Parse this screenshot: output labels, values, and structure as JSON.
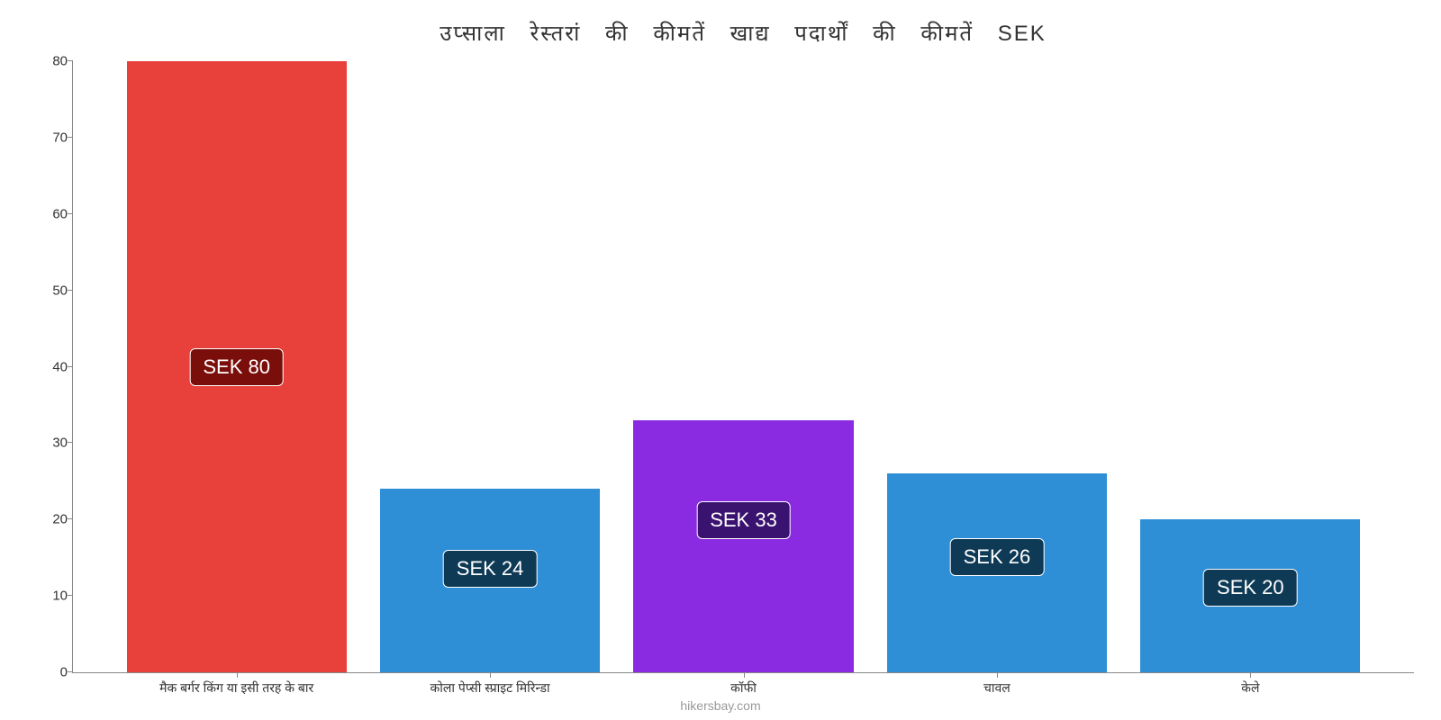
{
  "chart": {
    "type": "bar",
    "title": "उप्साला रेस्तरां की कीमतें खाद्य पदार्थों की कीमतें SEK",
    "title_fontsize": 24,
    "title_color": "#333333",
    "background_color": "#ffffff",
    "axis_color": "#888888",
    "tick_font_size": 15,
    "x_label_font_size": 14,
    "value_label_font_size": 22,
    "value_label_bg": "#0e3a56",
    "value_label_text_color": "#ffffff",
    "value_label_border": "#ffffff",
    "value_label_radius": 6,
    "ylim": [
      0,
      80
    ],
    "ytick_step": 10,
    "yticks": [
      0,
      10,
      20,
      30,
      40,
      50,
      60,
      70,
      80
    ],
    "attribution": "hikersbay.com",
    "attribution_color": "#999999",
    "bars": [
      {
        "category": "मैक बर्गर किंग या इसी तरह के बार",
        "value": 80,
        "value_label": "SEK 80",
        "color": "#e8403a",
        "label_bg": "#7a0e0a",
        "center_pct": 12.2,
        "width_pct": 16.4,
        "label_top_pct": 47
      },
      {
        "category": "कोला पेप्सी स्प्राइट मिरिन्डा",
        "value": 24,
        "value_label": "SEK 24",
        "color": "#2e8ed6",
        "label_bg": "#0e3a56",
        "center_pct": 31.1,
        "width_pct": 16.4,
        "label_top_pct": 80
      },
      {
        "category": "कॉफी",
        "value": 33,
        "value_label": "SEK 33",
        "color": "#8a2be2",
        "label_bg": "#3a1270",
        "center_pct": 50.0,
        "width_pct": 16.4,
        "label_top_pct": 72
      },
      {
        "category": "चावल",
        "value": 26,
        "value_label": "SEK 26",
        "color": "#2e8ed6",
        "label_bg": "#0e3a56",
        "center_pct": 68.9,
        "width_pct": 16.4,
        "label_top_pct": 78
      },
      {
        "category": "केले",
        "value": 20,
        "value_label": "SEK 20",
        "color": "#2e8ed6",
        "label_bg": "#0e3a56",
        "center_pct": 87.8,
        "width_pct": 16.4,
        "label_top_pct": 83
      }
    ]
  }
}
